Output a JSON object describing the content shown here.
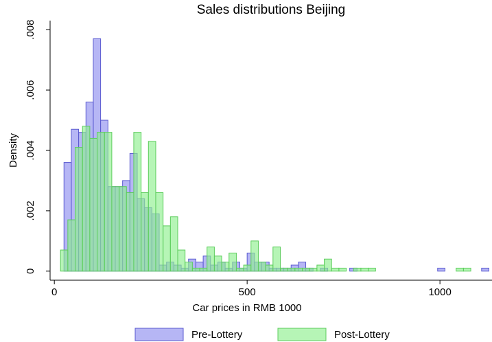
{
  "chart_data": {
    "type": "histogram",
    "title": "Sales distributions Beijing",
    "x_label": "Car prices in RMB 1000",
    "y_label": "Density",
    "xlim": [
      -11,
      1135
    ],
    "ylim": [
      -0.0003,
      0.0083
    ],
    "xticks": [
      0,
      500,
      1000
    ],
    "yticks": [
      0,
      {
        "value": 0.002,
        "label": ".002"
      },
      {
        "value": 0.004,
        "label": ".004"
      },
      {
        "value": 0.006,
        "label": ".006"
      },
      {
        "value": 0.008,
        "label": ".008"
      }
    ],
    "series": [
      {
        "name": "Pre-Lottery",
        "color": "#8f8ff0",
        "stroke": "#5a5ad0",
        "bins": [
          25,
          44,
          63,
          82,
          101,
          120,
          139,
          158,
          177,
          196,
          215,
          234,
          253,
          272,
          291,
          310,
          329,
          348,
          367,
          386,
          405,
          424,
          443,
          462,
          481,
          500,
          519,
          538,
          557,
          576,
          595,
          614,
          633,
          652,
          671,
          690,
          709,
          728,
          747,
          766,
          785,
          804,
          823,
          842,
          861,
          880,
          899,
          918,
          937,
          956,
          975,
          994,
          1013,
          1032,
          1051,
          1070,
          1089,
          1108,
          1127
        ],
        "values": [
          0.0036,
          0.0047,
          0.0046,
          0.0056,
          0.0077,
          0.005,
          0.0028,
          0.0028,
          0.003,
          0.0039,
          0.0024,
          0.0021,
          0.0019,
          0.0002,
          0.0003,
          0.0002,
          0.0001,
          0.0004,
          0.0003,
          0.0005,
          0.0002,
          0.0003,
          0.0001,
          0.0003,
          0.0001,
          0.0006,
          0.0003,
          0.0003,
          0.0001,
          0.0001,
          0.0001,
          0.0002,
          0.0003,
          0.0001,
          0,
          0.0001,
          0,
          0,
          0,
          0.0001,
          0,
          0,
          0,
          0,
          0,
          0,
          0,
          0,
          0,
          0,
          0,
          0.0001,
          0,
          0,
          0,
          0,
          0,
          0.0001
        ]
      },
      {
        "name": "Post-Lottery",
        "color": "#8ff08f",
        "stroke": "#5ccc5c",
        "bins": [
          16,
          35,
          54,
          73,
          92,
          111,
          130,
          149,
          168,
          187,
          206,
          225,
          244,
          263,
          282,
          301,
          320,
          339,
          358,
          377,
          396,
          415,
          434,
          453,
          472,
          491,
          510,
          529,
          548,
          567,
          586,
          605,
          624,
          643,
          662,
          681,
          700,
          719,
          738,
          757,
          776,
          795,
          814,
          833,
          852,
          871,
          890,
          909,
          928,
          947,
          966,
          985,
          1004,
          1023,
          1042,
          1061,
          1080,
          1099,
          1118
        ],
        "values": [
          0.0007,
          0.0017,
          0.0041,
          0.0048,
          0.0044,
          0.0046,
          0.0046,
          0.0028,
          0.0028,
          0.0026,
          0.0046,
          0.0026,
          0.0043,
          0.0026,
          0.0015,
          0.0018,
          0.0007,
          0.0003,
          0.0001,
          0.0001,
          0.0008,
          0.0005,
          0.0003,
          0.0006,
          0.0001,
          0.0002,
          0.001,
          0.0003,
          0.0002,
          0.0008,
          0.0001,
          0.0001,
          0.0001,
          0.0001,
          0.0001,
          0.0002,
          0.0004,
          0.0001,
          0.0001,
          0,
          0.0001,
          0.0001,
          0.0001,
          0,
          0,
          0,
          0,
          0,
          0,
          0,
          0,
          0,
          0,
          0,
          0.0001,
          0.0001,
          0,
          0
        ]
      }
    ]
  }
}
